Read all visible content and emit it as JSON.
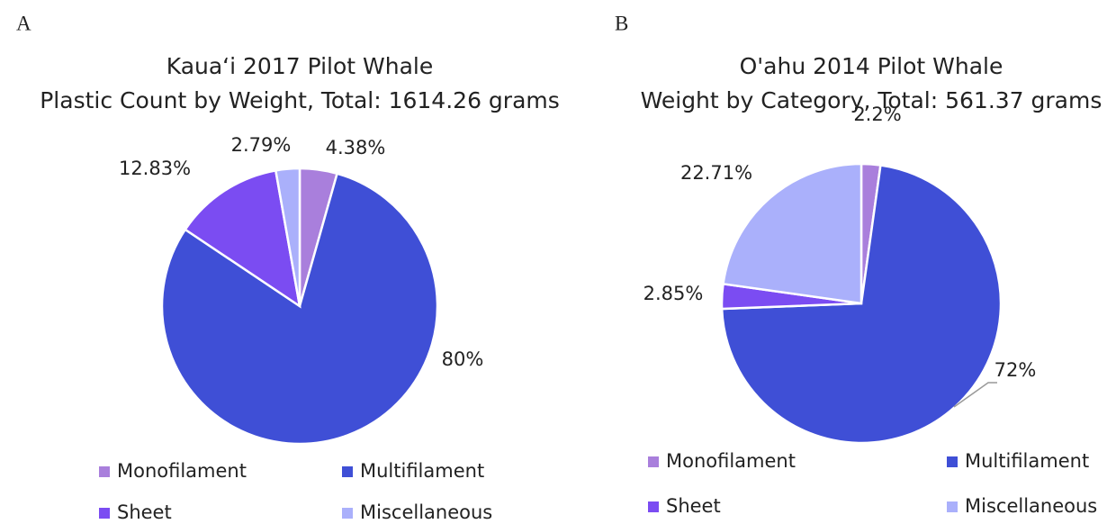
{
  "chart_data": [
    {
      "type": "pie",
      "panel": "A",
      "title": "Kaua‘i 2017 Pilot Whale",
      "subtitle": "Plastic Count by Weight, Total: 1614.26 grams",
      "categories": [
        "Monofilament",
        "Multifilament",
        "Sheet",
        "Miscellaneous"
      ],
      "values": [
        4.38,
        80,
        12.83,
        2.79
      ],
      "value_labels": [
        "4.38%",
        "80%",
        "12.83%",
        "2.79%"
      ],
      "colors": [
        "#a97fdc",
        "#3f4fd6",
        "#7b4cf2",
        "#aab0fb"
      ]
    },
    {
      "type": "pie",
      "panel": "B",
      "title": "O'ahu 2014 Pilot Whale",
      "subtitle": "Weight by Category, Total: 561.37 grams",
      "categories": [
        "Monofilament",
        "Multifilament",
        "Sheet",
        "Miscellaneous"
      ],
      "values": [
        2.2,
        72,
        2.85,
        22.71
      ],
      "value_labels": [
        "2.2%",
        "72%",
        "2.85%",
        "22.71%"
      ],
      "colors": [
        "#a97fdc",
        "#3f4fd6",
        "#7b4cf2",
        "#aab0fb"
      ]
    }
  ]
}
